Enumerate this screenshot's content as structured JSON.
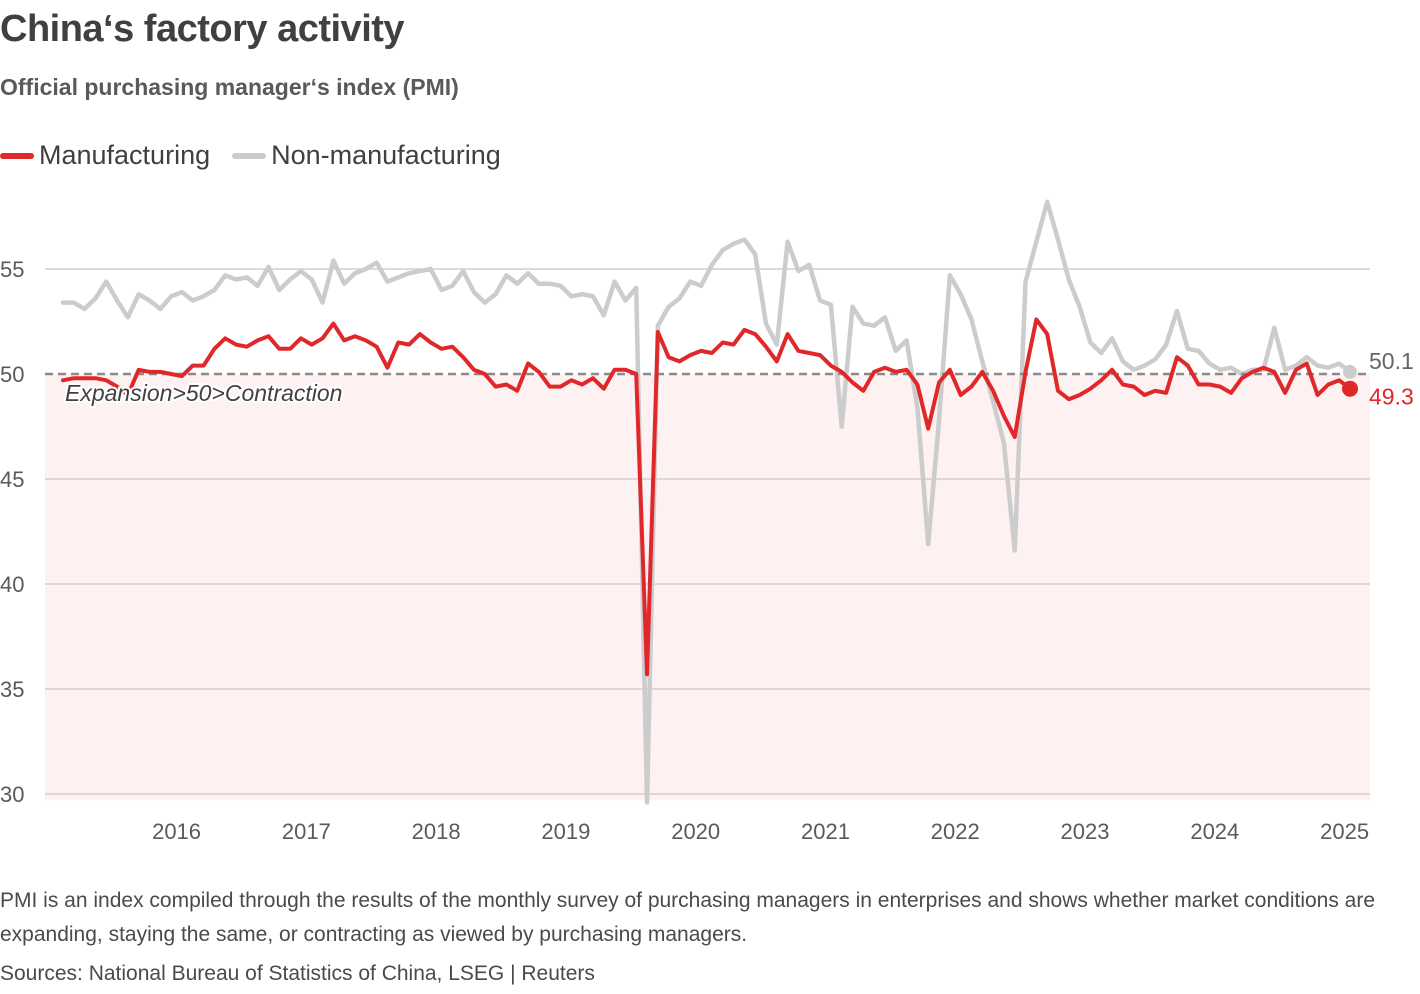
{
  "title": "China‘s factory activity",
  "subtitle": "Official purchasing manager‘s index (PMI)",
  "note": "PMI is an index compiled through the results of the monthly survey of purchasing managers in enterprises and shows whether market conditions are expanding, staying the same, or contracting as viewed by purchasing managers.",
  "source": "Sources: National Bureau of Statistics of China, LSEG | Reuters",
  "colors": {
    "manufacturing": "#e0282a",
    "non_manufacturing": "#cccccc",
    "contraction_fill": "#fdf1f1",
    "grid": "#cfcfcf",
    "threshold": "#8a8a8a"
  },
  "chart_data": {
    "type": "line",
    "title": "China‘s factory activity",
    "subtitle": "Official purchasing manager‘s index (PMI)",
    "xlabel": "",
    "ylabel": "",
    "ylim": [
      29.7,
      56.2
    ],
    "yticks": [
      30,
      35,
      40,
      45,
      50,
      55
    ],
    "xticks": [
      "2016",
      "2017",
      "2018",
      "2019",
      "2020",
      "2021",
      "2022",
      "2023",
      "2024",
      "2025"
    ],
    "start": "2015-08",
    "end": "2025-08",
    "threshold": {
      "value": 50,
      "label": "Expansion>50>Contraction"
    },
    "series": [
      {
        "name": "Manufacturing",
        "color": "#e0282a",
        "last_label": "49.3",
        "values": [
          49.7,
          49.8,
          49.8,
          49.8,
          49.7,
          49.4,
          49.0,
          50.2,
          50.1,
          50.1,
          50.0,
          49.9,
          50.4,
          50.4,
          51.2,
          51.7,
          51.4,
          51.3,
          51.6,
          51.8,
          51.2,
          51.2,
          51.7,
          51.4,
          51.7,
          52.4,
          51.6,
          51.8,
          51.6,
          51.3,
          50.3,
          51.5,
          51.4,
          51.9,
          51.5,
          51.2,
          51.3,
          50.8,
          50.2,
          50.0,
          49.4,
          49.5,
          49.2,
          50.5,
          50.1,
          49.4,
          49.4,
          49.7,
          49.5,
          49.8,
          49.3,
          50.2,
          50.2,
          50.0,
          35.7,
          52.0,
          50.8,
          50.6,
          50.9,
          51.1,
          51.0,
          51.5,
          51.4,
          52.1,
          51.9,
          51.3,
          50.6,
          51.9,
          51.1,
          51.0,
          50.9,
          50.4,
          50.1,
          49.6,
          49.2,
          50.1,
          50.3,
          50.1,
          50.2,
          49.5,
          47.4,
          49.6,
          50.2,
          49.0,
          49.4,
          50.1,
          49.2,
          48.0,
          47.0,
          50.1,
          52.6,
          51.9,
          49.2,
          48.8,
          49.0,
          49.3,
          49.7,
          50.2,
          49.5,
          49.4,
          49.0,
          49.2,
          49.1,
          50.8,
          50.4,
          49.5,
          49.5,
          49.4,
          49.1,
          49.8,
          50.1,
          50.3,
          50.1,
          49.1,
          50.2,
          50.5,
          49.0,
          49.5,
          49.7,
          49.3
        ]
      },
      {
        "name": "Non-manufacturing",
        "color": "#cccccc",
        "last_label": "50.1",
        "values": [
          53.4,
          53.4,
          53.1,
          53.6,
          54.4,
          53.5,
          52.7,
          53.8,
          53.5,
          53.1,
          53.7,
          53.9,
          53.5,
          53.7,
          54.0,
          54.7,
          54.5,
          54.6,
          54.2,
          55.1,
          54.0,
          54.5,
          54.9,
          54.5,
          53.4,
          55.4,
          54.3,
          54.8,
          55.0,
          55.3,
          54.4,
          54.6,
          54.8,
          54.9,
          55.0,
          54.0,
          54.2,
          54.9,
          53.9,
          53.4,
          53.8,
          54.7,
          54.3,
          54.8,
          54.3,
          54.3,
          54.2,
          53.7,
          53.8,
          53.7,
          52.8,
          54.4,
          53.5,
          54.1,
          29.6,
          52.3,
          53.2,
          53.6,
          54.4,
          54.2,
          55.2,
          55.9,
          56.2,
          56.4,
          55.7,
          52.4,
          51.4,
          56.3,
          54.9,
          55.2,
          53.5,
          53.3,
          47.5,
          53.2,
          52.4,
          52.3,
          52.7,
          51.1,
          51.6,
          48.4,
          41.9,
          47.8,
          54.7,
          53.8,
          52.6,
          50.6,
          48.7,
          46.7,
          41.6,
          54.4,
          56.3,
          58.2,
          56.4,
          54.5,
          53.2,
          51.5,
          51.0,
          51.7,
          50.6,
          50.2,
          50.4,
          50.7,
          51.4,
          53.0,
          51.2,
          51.1,
          50.5,
          50.2,
          50.3,
          50.0,
          50.2,
          50.2,
          52.2,
          50.2,
          50.4,
          50.8,
          50.4,
          50.3,
          50.5,
          50.1
        ]
      }
    ]
  }
}
